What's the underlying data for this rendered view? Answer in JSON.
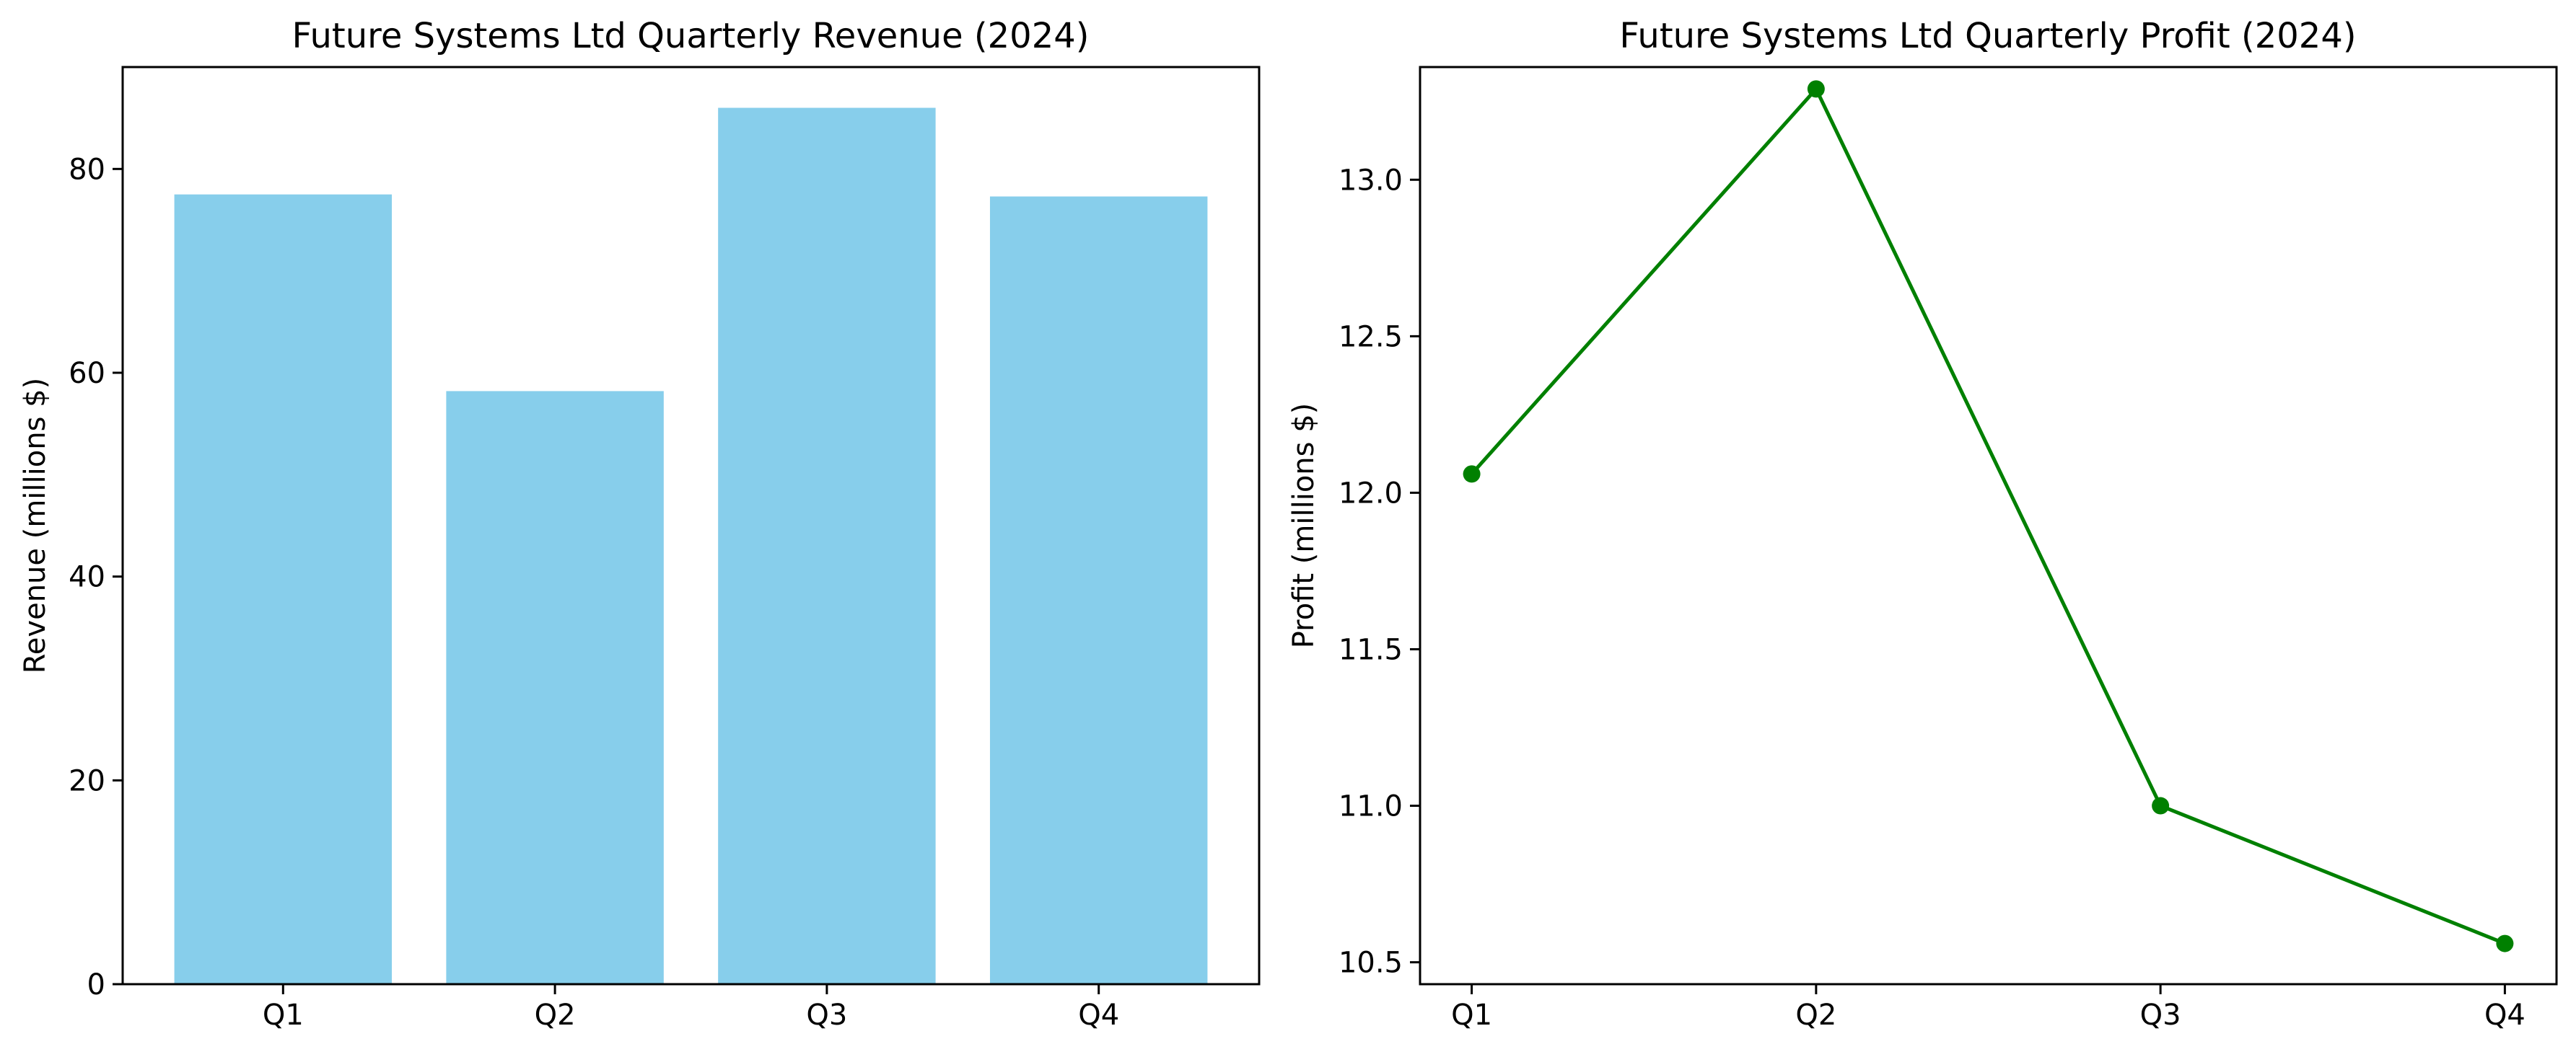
{
  "chart_data": [
    {
      "type": "bar",
      "title": "Future Systems Ltd Quarterly Revenue (2024)",
      "xlabel": "",
      "ylabel": "Revenue (millions $)",
      "categories": [
        "Q1",
        "Q2",
        "Q3",
        "Q4"
      ],
      "values": [
        77.5,
        58.2,
        86.0,
        77.3
      ],
      "ylim": [
        0,
        90
      ],
      "yticks": [
        0,
        20,
        40,
        60,
        80
      ],
      "ytick_labels": [
        "0",
        "20",
        "40",
        "60",
        "80"
      ],
      "color": "#87ceeb",
      "grid": false
    },
    {
      "type": "line",
      "title": "Future Systems Ltd Quarterly Profit (2024)",
      "xlabel": "",
      "ylabel": "Profit (millions $)",
      "categories": [
        "Q1",
        "Q2",
        "Q3",
        "Q4"
      ],
      "values": [
        12.06,
        13.29,
        11.0,
        10.56
      ],
      "ylim": [
        10.43,
        13.36
      ],
      "yticks": [
        10.5,
        11.0,
        11.5,
        12.0,
        12.5,
        13.0
      ],
      "ytick_labels": [
        "10.5",
        "11.0",
        "11.5",
        "12.0",
        "12.5",
        "13.0"
      ],
      "color": "#008000",
      "marker": "circle",
      "grid": false
    }
  ]
}
